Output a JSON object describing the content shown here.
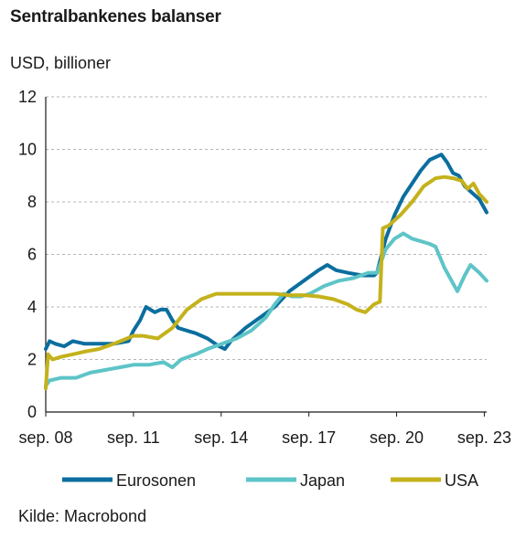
{
  "chart_data": {
    "type": "line",
    "title": "Sentralbankenes balanser",
    "ylabel": "USD, billioner",
    "source": "Kilde: Macrobond",
    "ylim": [
      0,
      12
    ],
    "yticks": [
      0,
      2,
      4,
      6,
      8,
      10,
      12
    ],
    "xlim": [
      2008.67,
      2023.75
    ],
    "xtick_labels": [
      "sep. 08",
      "sep. 11",
      "sep. 14",
      "sep. 17",
      "sep. 20",
      "sep. 23"
    ],
    "xtick_positions": [
      2008.67,
      2011.67,
      2014.67,
      2017.67,
      2020.67,
      2023.67
    ],
    "grid": "horizontal dashed",
    "legend_position": "bottom",
    "series": [
      {
        "name": "Eurosonen",
        "color": "#0b6e9e",
        "x": [
          2008.67,
          2008.8,
          2009.0,
          2009.3,
          2009.6,
          2010.0,
          2010.5,
          2011.0,
          2011.5,
          2011.67,
          2011.9,
          2012.1,
          2012.4,
          2012.6,
          2012.8,
          2013.0,
          2013.2,
          2013.5,
          2013.8,
          2014.2,
          2014.6,
          2014.8,
          2015.0,
          2015.5,
          2016.0,
          2016.5,
          2017.0,
          2017.5,
          2018.0,
          2018.3,
          2018.6,
          2019.0,
          2019.5,
          2019.9,
          2020.0,
          2020.3,
          2020.6,
          2020.9,
          2021.2,
          2021.5,
          2021.8,
          2022.0,
          2022.2,
          2022.4,
          2022.6,
          2022.8,
          2023.0,
          2023.3,
          2023.5,
          2023.75
        ],
        "y": [
          2.4,
          2.7,
          2.6,
          2.5,
          2.7,
          2.6,
          2.6,
          2.6,
          2.7,
          3.1,
          3.5,
          4.0,
          3.8,
          3.9,
          3.9,
          3.5,
          3.2,
          3.1,
          3.0,
          2.8,
          2.5,
          2.4,
          2.7,
          3.2,
          3.6,
          4.0,
          4.6,
          5.0,
          5.4,
          5.6,
          5.4,
          5.3,
          5.2,
          5.2,
          5.3,
          6.6,
          7.5,
          8.2,
          8.7,
          9.2,
          9.6,
          9.7,
          9.8,
          9.5,
          9.1,
          9.0,
          8.6,
          8.3,
          8.1,
          7.6
        ]
      },
      {
        "name": "Japan",
        "color": "#5ec4c7",
        "x": [
          2008.67,
          2008.8,
          2009.2,
          2009.7,
          2010.2,
          2010.7,
          2011.2,
          2011.67,
          2012.2,
          2012.7,
          2013.0,
          2013.3,
          2013.8,
          2014.2,
          2014.7,
          2015.2,
          2015.7,
          2016.2,
          2016.5,
          2016.8,
          2017.1,
          2017.4,
          2017.7,
          2018.2,
          2018.7,
          2019.2,
          2019.7,
          2020.0,
          2020.3,
          2020.6,
          2020.9,
          2021.2,
          2021.5,
          2021.8,
          2022.0,
          2022.3,
          2022.6,
          2022.75,
          2023.0,
          2023.2,
          2023.5,
          2023.75
        ],
        "y": [
          1.0,
          1.2,
          1.3,
          1.3,
          1.5,
          1.6,
          1.7,
          1.8,
          1.8,
          1.9,
          1.7,
          2.0,
          2.2,
          2.4,
          2.6,
          2.8,
          3.1,
          3.6,
          4.1,
          4.5,
          4.4,
          4.4,
          4.5,
          4.8,
          5.0,
          5.1,
          5.3,
          5.3,
          6.2,
          6.6,
          6.8,
          6.6,
          6.5,
          6.4,
          6.3,
          5.5,
          4.9,
          4.6,
          5.2,
          5.6,
          5.3,
          5.0
        ]
      },
      {
        "name": "USA",
        "color": "#c4b21c",
        "x": [
          2008.67,
          2008.75,
          2008.9,
          2009.2,
          2009.6,
          2010.0,
          2010.5,
          2011.0,
          2011.67,
          2012.0,
          2012.5,
          2013.0,
          2013.5,
          2014.0,
          2014.5,
          2014.9,
          2015.5,
          2016.0,
          2016.5,
          2017.0,
          2017.5,
          2018.0,
          2018.5,
          2019.0,
          2019.3,
          2019.6,
          2019.9,
          2020.1,
          2020.2,
          2020.4,
          2020.8,
          2021.2,
          2021.6,
          2022.0,
          2022.3,
          2022.6,
          2022.9,
          2023.1,
          2023.3,
          2023.5,
          2023.75
        ],
        "y": [
          0.9,
          2.2,
          2.0,
          2.1,
          2.2,
          2.3,
          2.4,
          2.6,
          2.9,
          2.9,
          2.8,
          3.2,
          3.9,
          4.3,
          4.5,
          4.5,
          4.5,
          4.5,
          4.5,
          4.45,
          4.45,
          4.4,
          4.3,
          4.1,
          3.9,
          3.8,
          4.1,
          4.2,
          7.0,
          7.1,
          7.5,
          8.0,
          8.6,
          8.9,
          8.95,
          8.9,
          8.8,
          8.5,
          8.7,
          8.3,
          8.0
        ]
      }
    ]
  }
}
